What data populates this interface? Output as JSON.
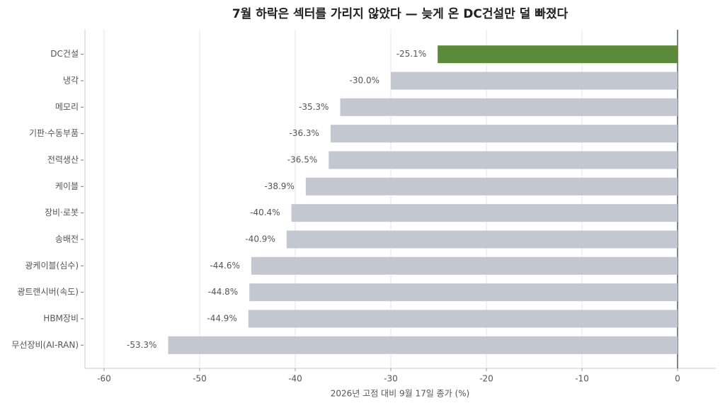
{
  "chart_data": {
    "type": "hbar",
    "title": "7월 하락은 섹터를 가리지 않았다 — 늦게 온 DC건설만 덜 빠졌다",
    "x_label": "2026년 고점 대비 9월 17일 종가 (%)",
    "categories": [
      "DC건설",
      "냉각",
      "메모리",
      "기판·수동부품",
      "전력생산",
      "케이블",
      "장비·로봇",
      "송배전",
      "광케이블(심수)",
      "광트랜시버(속도)",
      "HBM장비",
      "무선장비(AI-RAN)"
    ],
    "values": [
      -25.1,
      -30.0,
      -35.3,
      -36.3,
      -36.5,
      -38.9,
      -40.4,
      -40.9,
      -44.6,
      -44.8,
      -44.9,
      -53.3
    ],
    "value_labels": [
      "-25.1%",
      "-30.0%",
      "-35.3%",
      "-36.3%",
      "-36.5%",
      "-38.9%",
      "-40.4%",
      "-40.9%",
      "-44.6%",
      "-44.8%",
      "-44.9%",
      "-53.3%"
    ],
    "colors": [
      "#5b8a3a",
      "#c3c8d0",
      "#c3c8d0",
      "#c3c8d0",
      "#c3c8d0",
      "#c3c8d0",
      "#c3c8d0",
      "#c3c8d0",
      "#c3c8d0",
      "#c3c8d0",
      "#c3c8d0",
      "#c3c8d0"
    ],
    "xlim": [
      -62,
      4
    ],
    "xticks": [
      -60,
      -50,
      -40,
      -30,
      -20,
      -10,
      0
    ],
    "grid": true
  }
}
